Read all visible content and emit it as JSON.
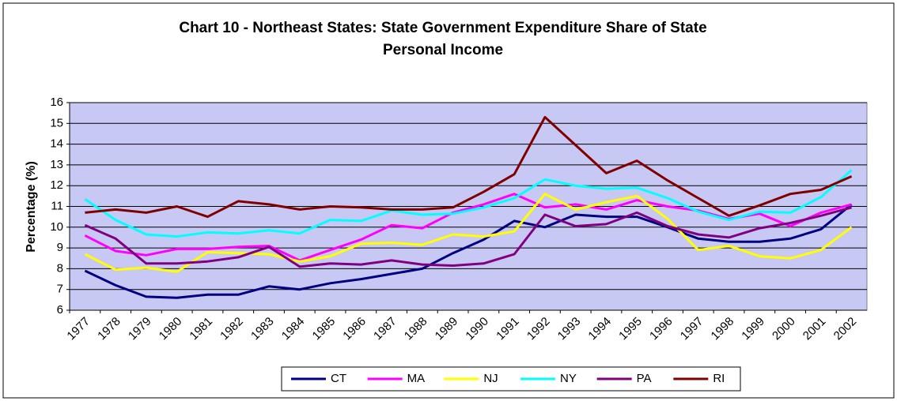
{
  "chart_data": {
    "type": "line",
    "title": "Chart 10 - Northeast States: State Government Expenditure Share of State Personal Income",
    "y_label": "Percentage (%)",
    "categories": [
      "1977",
      "1978",
      "1979",
      "1980",
      "1981",
      "1982",
      "1983",
      "1984",
      "1985",
      "1986",
      "1987",
      "1988",
      "1989",
      "1990",
      "1991",
      "1992",
      "1993",
      "1994",
      "1995",
      "1996",
      "1997",
      "1998",
      "1999",
      "2000",
      "2001",
      "2002"
    ],
    "series": [
      {
        "name": "CT",
        "color": "#000080",
        "values": [
          7.9,
          7.2,
          6.65,
          6.6,
          6.75,
          6.75,
          7.15,
          7.0,
          7.3,
          7.5,
          7.75,
          8.0,
          8.75,
          9.4,
          10.3,
          10.0,
          10.6,
          10.5,
          10.5,
          10.0,
          9.45,
          9.3,
          9.3,
          9.45,
          9.9,
          11.1
        ]
      },
      {
        "name": "MA",
        "color": "#ff00ff",
        "values": [
          9.6,
          8.85,
          8.65,
          8.95,
          8.95,
          9.05,
          9.1,
          8.4,
          8.9,
          9.4,
          10.1,
          9.95,
          10.7,
          11.1,
          11.6,
          10.95,
          11.1,
          10.85,
          11.3,
          11.0,
          10.8,
          10.4,
          10.65,
          10.05,
          10.7,
          11.1
        ]
      },
      {
        "name": "NJ",
        "color": "#ffff00",
        "values": [
          8.7,
          7.95,
          8.05,
          7.85,
          8.8,
          8.75,
          8.7,
          8.35,
          8.6,
          9.2,
          9.25,
          9.15,
          9.65,
          9.55,
          9.8,
          11.6,
          10.85,
          11.2,
          11.5,
          10.4,
          8.9,
          9.1,
          8.6,
          8.5,
          8.9,
          10.0
        ]
      },
      {
        "name": "NY",
        "color": "#00ffff",
        "values": [
          11.35,
          10.35,
          9.65,
          9.55,
          9.75,
          9.7,
          9.85,
          9.7,
          10.35,
          10.3,
          10.8,
          10.6,
          10.65,
          10.95,
          11.4,
          12.3,
          12.0,
          11.85,
          11.9,
          11.4,
          10.75,
          10.35,
          10.75,
          10.7,
          11.45,
          12.75
        ]
      },
      {
        "name": "PA",
        "color": "#800080",
        "values": [
          10.1,
          9.45,
          8.25,
          8.25,
          8.35,
          8.55,
          9.05,
          8.1,
          8.25,
          8.2,
          8.4,
          8.2,
          8.15,
          8.25,
          8.7,
          10.6,
          10.05,
          10.15,
          10.7,
          10.05,
          9.65,
          9.5,
          9.95,
          10.2,
          10.55,
          10.95
        ]
      },
      {
        "name": "RI",
        "color": "#800000",
        "values": [
          10.7,
          10.85,
          10.7,
          11.0,
          10.5,
          11.25,
          11.1,
          10.85,
          11.0,
          10.95,
          10.85,
          10.85,
          10.95,
          11.7,
          12.55,
          15.3,
          13.95,
          12.6,
          13.2,
          12.25,
          11.4,
          10.55,
          11.05,
          11.6,
          11.8,
          12.45
        ]
      }
    ],
    "ylim": [
      6,
      16
    ],
    "yticks": [
      6,
      7,
      8,
      9,
      10,
      11,
      12,
      13,
      14,
      15,
      16
    ],
    "grid": true,
    "plot_background": "#c8c8f4",
    "legend_position": "bottom"
  }
}
